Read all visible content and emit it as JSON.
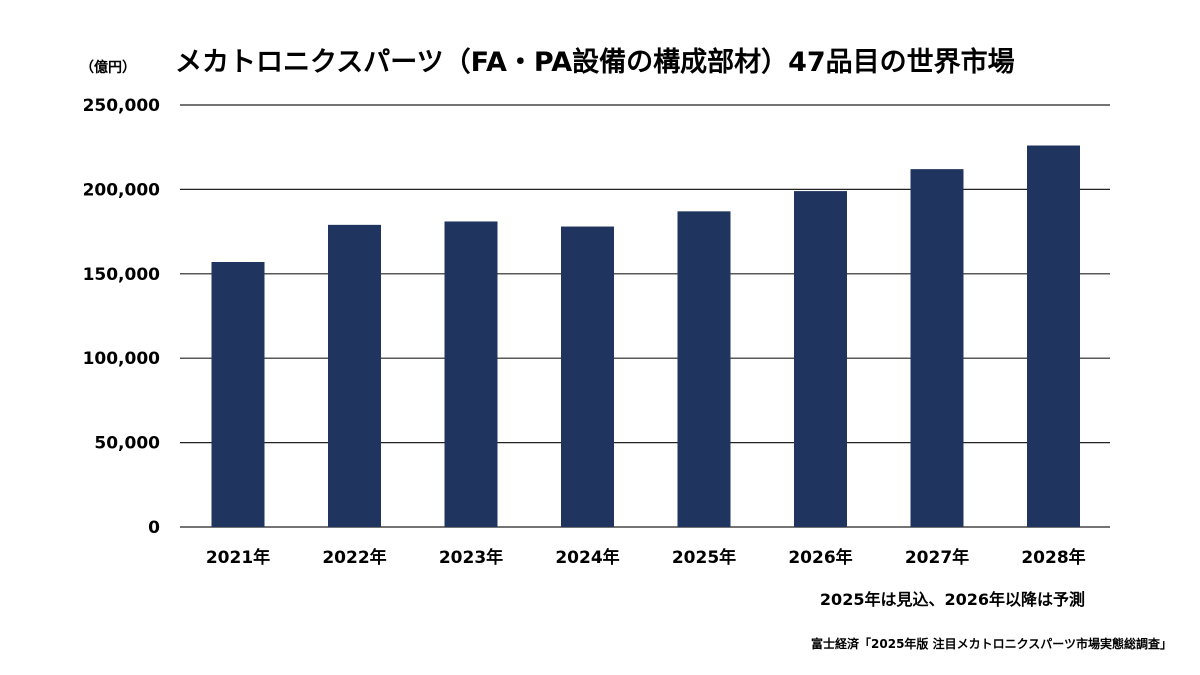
{
  "chart_data": {
    "type": "bar",
    "title": "メカトロニクスパーツ（FA・PA設備の構成部材）47品目の世界市場",
    "unit_label": "（億円）",
    "categories": [
      "2021年",
      "2022年",
      "2023年",
      "2024年",
      "2025年",
      "2026年",
      "2027年",
      "2028年"
    ],
    "values": [
      157000,
      179000,
      181000,
      178000,
      187000,
      199000,
      212000,
      226000
    ],
    "ylim": [
      0,
      250000
    ],
    "yticks": [
      0,
      50000,
      100000,
      150000,
      200000,
      250000
    ],
    "ytick_labels": [
      "0",
      "50,000",
      "100,000",
      "150,000",
      "200,000",
      "250,000"
    ],
    "grid": true,
    "bar_color": "#1f3560",
    "note": "2025年は見込、2026年以降は予測",
    "source": "富士経済「2025年版 注目メカトロニクスパーツ市場実態総調査」"
  }
}
